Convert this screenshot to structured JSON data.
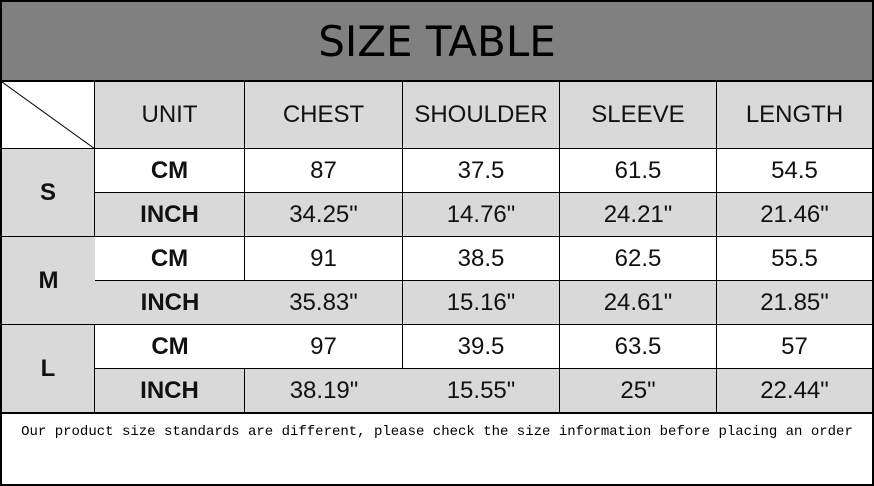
{
  "title": "SIZE TABLE",
  "headers": [
    "UNIT",
    "CHEST",
    "SHOULDER",
    "SLEEVE",
    "LENGTH"
  ],
  "rows": [
    {
      "size": "S",
      "cm": {
        "unit": "CM",
        "values": [
          "87",
          "37.5",
          "61.5",
          "54.5"
        ]
      },
      "inch": {
        "unit": "INCH",
        "values": [
          "34.25\"",
          "14.76\"",
          "24.21\"",
          "21.46\""
        ]
      }
    },
    {
      "size": "M",
      "cm": {
        "unit": "CM",
        "values": [
          "91",
          "38.5",
          "62.5",
          "55.5"
        ]
      },
      "inch": {
        "unit": "INCH",
        "values": [
          "35.83\"",
          "15.16\"",
          "24.61\"",
          "21.85\""
        ]
      }
    },
    {
      "size": "L",
      "cm": {
        "unit": "CM",
        "values": [
          "97",
          "39.5",
          "63.5",
          "57"
        ]
      },
      "inch": {
        "unit": "INCH",
        "values": [
          "38.19\"",
          "15.55\"",
          "25\"",
          "22.44\""
        ]
      }
    }
  ],
  "footer": "Our product size standards are different, please check the size information before placing an order",
  "colors": {
    "title_bg": "#808080",
    "header_bg": "#d9d9d9",
    "row_alt": "#d9d9d9"
  }
}
